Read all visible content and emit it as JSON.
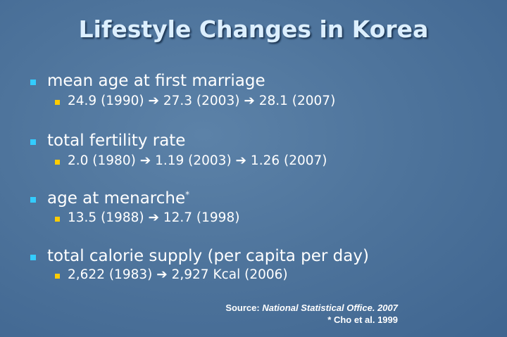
{
  "title": "Lifestyle Changes in Korea",
  "items": [
    {
      "label": "mean age at first marriage",
      "sup": "",
      "sub": "24.9 (1990) ➔ 27.3 (2003)  ➔ 28.1 (2007)"
    },
    {
      "label": "total fertility rate",
      "sup": "",
      "sub": "2.0 (1980)  ➔ 1.19 (2003)  ➔ 1.26 (2007)"
    },
    {
      "label": "age at menarche",
      "sup": "*",
      "sub": "13.5 (1988) ➔ 12.7 (1998)"
    },
    {
      "label": "total calorie supply (per capita per day)",
      "sup": "",
      "sub": "2,622 (1983) ➔ 2,927 Kcal (2006)"
    }
  ],
  "source": {
    "prefix": "Source: ",
    "name": "National Statistical Office. 2007",
    "note": "* Cho et al. 1999"
  },
  "colors": {
    "main_bullet": "#33ccff",
    "sub_bullet": "#ffcc00",
    "title": "#dcefff"
  }
}
